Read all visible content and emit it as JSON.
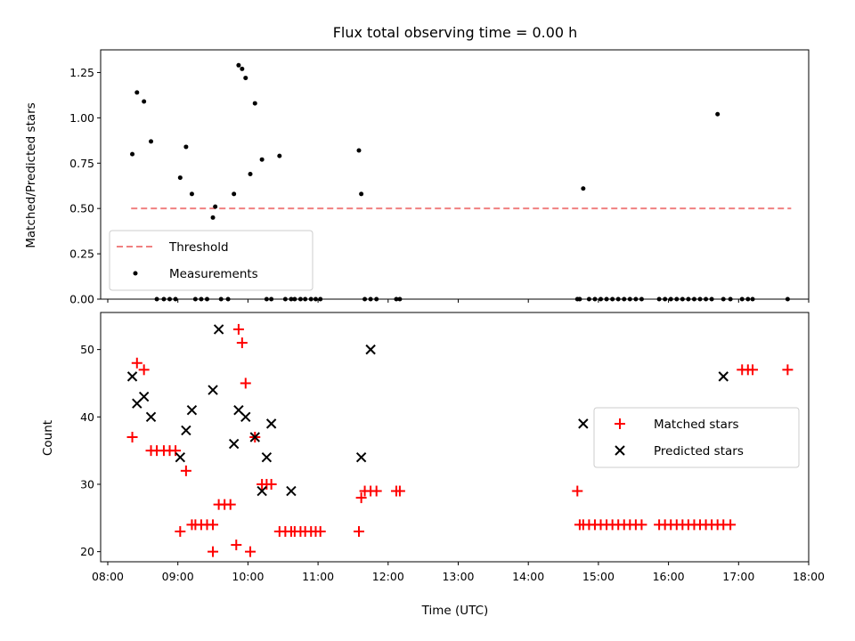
{
  "chart_data": [
    {
      "type": "scatter",
      "title": "Flux total observing time = 0.00 h",
      "xlabel": "",
      "ylabel": "Matched/Predicted stars",
      "ylim": [
        0,
        1.375
      ],
      "yticks": [
        "0.00",
        "0.25",
        "0.50",
        "0.75",
        "1.00",
        "1.25"
      ],
      "legend_position": "lower-left",
      "threshold": {
        "name": "Threshold",
        "value": 0.5,
        "x_start": "08:20",
        "x_end": "17:45",
        "color": "#f08080"
      },
      "series": [
        {
          "name": "Measurements",
          "color": "#000000",
          "x": [
            "08:21",
            "08:25",
            "08:31",
            "08:37",
            "08:42",
            "08:48",
            "08:53",
            "08:58",
            "09:02",
            "09:07",
            "09:12",
            "09:15",
            "09:20",
            "09:25",
            "09:30",
            "09:32",
            "09:37",
            "09:43",
            "09:48",
            "09:52",
            "09:55",
            "09:58",
            "10:02",
            "10:06",
            "10:12",
            "10:16",
            "10:20",
            "10:27",
            "10:32",
            "10:37",
            "10:40",
            "10:45",
            "10:49",
            "10:54",
            "10:58",
            "11:02",
            "11:35",
            "11:37",
            "11:40",
            "11:45",
            "11:50",
            "12:07",
            "12:10",
            "14:42",
            "14:44",
            "14:47",
            "14:52",
            "14:57",
            "15:02",
            "15:07",
            "15:12",
            "15:17",
            "15:22",
            "15:27",
            "15:32",
            "15:37",
            "15:52",
            "15:57",
            "16:02",
            "16:07",
            "16:12",
            "16:17",
            "16:22",
            "16:27",
            "16:32",
            "16:37",
            "16:42",
            "16:47",
            "16:53",
            "17:03",
            "17:08",
            "17:12",
            "17:42"
          ],
          "y": [
            0.8,
            1.14,
            1.09,
            0.87,
            0.0,
            0.0,
            0.0,
            0.0,
            0.67,
            0.84,
            0.58,
            0.0,
            0.0,
            0.0,
            0.45,
            0.51,
            0.0,
            0.0,
            0.58,
            1.29,
            1.27,
            1.22,
            0.69,
            1.08,
            0.77,
            0.0,
            0.0,
            0.79,
            0.0,
            0.0,
            0.0,
            0.0,
            0.0,
            0.0,
            0.0,
            0.0,
            0.82,
            0.58,
            0.0,
            0.0,
            0.0,
            0.0,
            0.0,
            0.0,
            0.0,
            0.61,
            0.0,
            0.0,
            0.0,
            0.0,
            0.0,
            0.0,
            0.0,
            0.0,
            0.0,
            0.0,
            0.0,
            0.0,
            0.0,
            0.0,
            0.0,
            0.0,
            0.0,
            0.0,
            0.0,
            0.0,
            1.02,
            0.0,
            0.0,
            0.0,
            0.0,
            0.0,
            0.0
          ]
        }
      ]
    },
    {
      "type": "scatter",
      "title": "",
      "xlabel": "Time (UTC)",
      "ylabel": "Count",
      "ylim": [
        18.5,
        55.5
      ],
      "yticks": [
        "20",
        "30",
        "40",
        "50"
      ],
      "xlim": [
        "08:00",
        "18:00"
      ],
      "xticks": [
        "08:00",
        "09:00",
        "10:00",
        "11:00",
        "12:00",
        "13:00",
        "14:00",
        "15:00",
        "16:00",
        "17:00",
        "18:00"
      ],
      "legend_position": "center-right",
      "series": [
        {
          "name": "Matched stars",
          "marker": "plus",
          "color": "#ff0000",
          "x": [
            "08:21",
            "08:25",
            "08:31",
            "08:37",
            "08:42",
            "08:48",
            "08:53",
            "08:58",
            "09:02",
            "09:07",
            "09:12",
            "09:15",
            "09:20",
            "09:25",
            "09:30",
            "09:30",
            "09:35",
            "09:40",
            "09:45",
            "09:50",
            "09:52",
            "09:55",
            "09:58",
            "10:02",
            "10:06",
            "10:12",
            "10:16",
            "10:20",
            "10:27",
            "10:32",
            "10:37",
            "10:40",
            "10:45",
            "10:49",
            "10:54",
            "10:58",
            "11:02",
            "11:35",
            "11:37",
            "11:40",
            "11:45",
            "11:50",
            "12:07",
            "12:10",
            "14:42",
            "14:44",
            "14:47",
            "14:52",
            "14:57",
            "15:02",
            "15:07",
            "15:12",
            "15:17",
            "15:22",
            "15:27",
            "15:32",
            "15:37",
            "15:52",
            "15:57",
            "16:02",
            "16:07",
            "16:12",
            "16:17",
            "16:22",
            "16:27",
            "16:32",
            "16:37",
            "16:42",
            "16:47",
            "16:53",
            "17:03",
            "17:08",
            "17:12",
            "17:42"
          ],
          "y": [
            37,
            48,
            47,
            35,
            35,
            35,
            35,
            35,
            23,
            32,
            24,
            24,
            24,
            24,
            20,
            24,
            27,
            27,
            27,
            21,
            53,
            51,
            45,
            20,
            37,
            30,
            30,
            30,
            23,
            23,
            23,
            23,
            23,
            23,
            23,
            23,
            23,
            23,
            28,
            29,
            29,
            29,
            29,
            29,
            29,
            24,
            24,
            24,
            24,
            24,
            24,
            24,
            24,
            24,
            24,
            24,
            24,
            24,
            24,
            24,
            24,
            24,
            24,
            24,
            24,
            24,
            24,
            24,
            24,
            24,
            47,
            47,
            47,
            47
          ]
        },
        {
          "name": "Predicted stars",
          "marker": "x",
          "color": "#000000",
          "x": [
            "08:21",
            "08:25",
            "08:31",
            "08:37",
            "09:02",
            "09:07",
            "09:12",
            "09:30",
            "09:35",
            "09:48",
            "09:52",
            "09:58",
            "10:06",
            "10:12",
            "10:16",
            "10:20",
            "10:37",
            "11:37",
            "11:45",
            "14:47",
            "16:47"
          ],
          "y": [
            46,
            42,
            43,
            40,
            34,
            38,
            41,
            44,
            53,
            36,
            41,
            40,
            37,
            29,
            34,
            39,
            29,
            34,
            50,
            39,
            46
          ]
        }
      ]
    }
  ]
}
